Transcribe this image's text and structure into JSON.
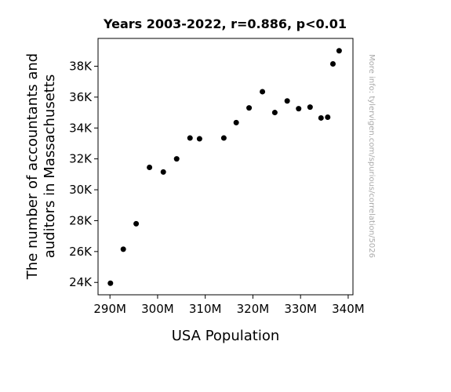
{
  "chart_data": {
    "type": "scatter",
    "title": "Years 2003-2022, r=0.886, p<0.01",
    "xlabel": "USA Population",
    "ylabel_lines": [
      "The number of accountants and",
      "auditors in Massachusetts"
    ],
    "watermark": "More info: tylervigen.com/spurious/correlation/5026",
    "xlim": [
      287500000,
      341000000
    ],
    "ylim": [
      23200,
      39800
    ],
    "x_ticks": [
      {
        "value": 290000000,
        "label": "290M"
      },
      {
        "value": 300000000,
        "label": "300M"
      },
      {
        "value": 310000000,
        "label": "310M"
      },
      {
        "value": 320000000,
        "label": "320M"
      },
      {
        "value": 330000000,
        "label": "330M"
      },
      {
        "value": 340000000,
        "label": "340M"
      }
    ],
    "y_ticks": [
      {
        "value": 24000,
        "label": "24K"
      },
      {
        "value": 26000,
        "label": "26K"
      },
      {
        "value": 28000,
        "label": "28K"
      },
      {
        "value": 30000,
        "label": "30K"
      },
      {
        "value": 32000,
        "label": "32K"
      },
      {
        "value": 34000,
        "label": "34K"
      },
      {
        "value": 36000,
        "label": "36K"
      },
      {
        "value": 38000,
        "label": "38K"
      }
    ],
    "point_color": "#000000",
    "points": [
      {
        "x": 290100000,
        "y": 23950
      },
      {
        "x": 292800000,
        "y": 26150
      },
      {
        "x": 295500000,
        "y": 27800
      },
      {
        "x": 298300000,
        "y": 31450
      },
      {
        "x": 301200000,
        "y": 31150
      },
      {
        "x": 304000000,
        "y": 32000
      },
      {
        "x": 306800000,
        "y": 33350
      },
      {
        "x": 308800000,
        "y": 33300
      },
      {
        "x": 313900000,
        "y": 33350
      },
      {
        "x": 316500000,
        "y": 34350
      },
      {
        "x": 319200000,
        "y": 35300
      },
      {
        "x": 322000000,
        "y": 36350
      },
      {
        "x": 324600000,
        "y": 35000
      },
      {
        "x": 327200000,
        "y": 35750
      },
      {
        "x": 329600000,
        "y": 35250
      },
      {
        "x": 332000000,
        "y": 35350
      },
      {
        "x": 334300000,
        "y": 34650
      },
      {
        "x": 335700000,
        "y": 34700
      },
      {
        "x": 336800000,
        "y": 38150
      },
      {
        "x": 338100000,
        "y": 39000
      }
    ]
  }
}
